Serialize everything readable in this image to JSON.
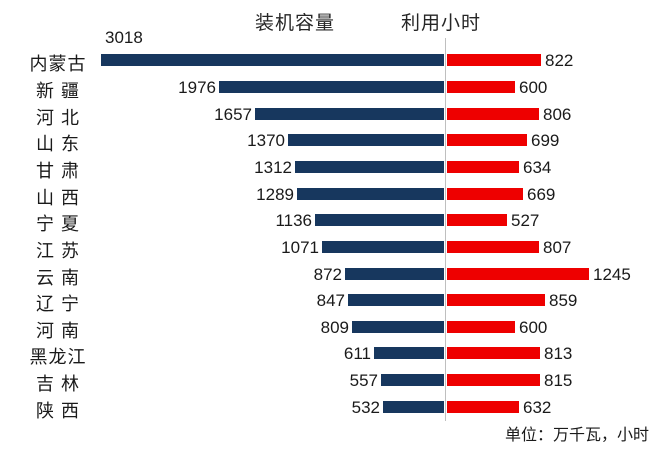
{
  "chart_data": {
    "type": "bar",
    "variant": "diverging-horizontal",
    "title": "",
    "legend_position": "top",
    "grid": false,
    "categories": [
      "内蒙古",
      "新疆",
      "河北",
      "山东",
      "甘肃",
      "山西",
      "宁夏",
      "江苏",
      "云南",
      "辽宁",
      "河南",
      "黑龙江",
      "吉林",
      "陕西"
    ],
    "display_labels": [
      "内蒙古",
      "新 疆",
      "河 北",
      "山 东",
      "甘 肃",
      "山 西",
      "宁 夏",
      "江 苏",
      "云 南",
      "辽 宁",
      "河 南",
      "黑龙江",
      "吉 林",
      "陕 西"
    ],
    "series": [
      {
        "name": "装机容量",
        "color": "#17375E",
        "values": [
          3018,
          1976,
          1657,
          1370,
          1312,
          1289,
          1136,
          1071,
          872,
          847,
          809,
          611,
          557,
          532
        ]
      },
      {
        "name": "利用小时",
        "color": "#EE0000",
        "values": [
          822,
          600,
          806,
          699,
          634,
          669,
          527,
          807,
          1245,
          859,
          600,
          813,
          815,
          632
        ]
      }
    ],
    "axis_divider_color": "#BFBFBF",
    "unit_note": "单位：万千瓦，小时"
  }
}
